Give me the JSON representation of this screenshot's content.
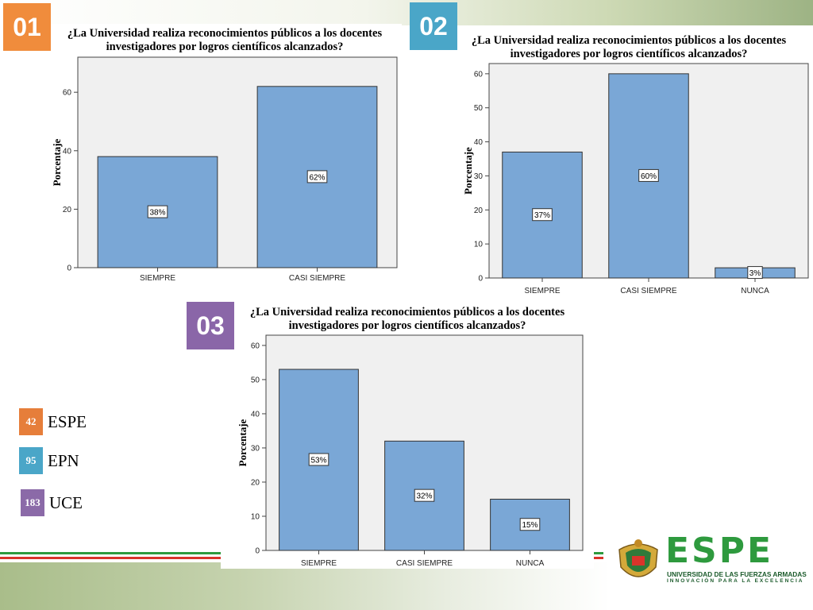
{
  "badges": [
    "01",
    "02",
    "03"
  ],
  "legend": [
    {
      "count": "42",
      "name": "ESPE",
      "color": "#e67e3a"
    },
    {
      "count": "95",
      "name": "EPN",
      "color": "#4aa6c8"
    },
    {
      "count": "183",
      "name": "UCE",
      "color": "#8b6aa8"
    }
  ],
  "colors": {
    "bar": "#7aa7d6",
    "plot_bg": "#f0f0f0",
    "badge_01": "#f08c3c",
    "badge_02": "#4aa6c8",
    "badge_03": "#8a66a8",
    "brand_green": "#2e9a3e"
  },
  "chart_data": [
    {
      "type": "bar",
      "title": "¿La Universidad realiza reconocimientos públicos a los docentes investigadores por logros científicos alcanzados?",
      "title_lines": [
        "¿La Universidad realiza reconocimientos públicos a los docentes",
        "investigadores por logros científicos alcanzados?"
      ],
      "ylabel": "Porcentaje",
      "categories": [
        "SIEMPRE",
        "CASI SIEMPRE"
      ],
      "values": [
        38,
        62
      ],
      "data_labels": [
        "38%",
        "62%"
      ],
      "ylim": [
        0,
        72
      ],
      "yticks": [
        0,
        20,
        40,
        60
      ],
      "grid": false
    },
    {
      "type": "bar",
      "title": "¿La Universidad realiza reconocimientos públicos a los docentes investigadores por logros científicos alcanzados?",
      "title_lines": [
        "¿La Universidad realiza reconocimientos públicos a los docentes",
        "investigadores por logros científicos alcanzados?"
      ],
      "ylabel": "Porcentaje",
      "categories": [
        "SIEMPRE",
        "CASI SIEMPRE",
        "NUNCA"
      ],
      "values": [
        37,
        60,
        3
      ],
      "data_labels": [
        "37%",
        "60%",
        "3%"
      ],
      "ylim": [
        0,
        63
      ],
      "yticks": [
        0,
        10,
        20,
        30,
        40,
        50,
        60
      ],
      "grid": false
    },
    {
      "type": "bar",
      "title": "¿La Universidad realiza reconocimientos públicos a los docentes investigadores por logros científicos alcanzados?",
      "title_lines": [
        "¿La Universidad realiza reconocimientos públicos a los docentes",
        "investigadores por logros científicos alcanzados?"
      ],
      "ylabel": "Porcentaje",
      "categories": [
        "SIEMPRE",
        "CASI SIEMPRE",
        "NUNCA"
      ],
      "values": [
        53,
        32,
        15
      ],
      "data_labels": [
        "53%",
        "32%",
        "15%"
      ],
      "ylim": [
        0,
        63
      ],
      "yticks": [
        0,
        10,
        20,
        30,
        40,
        50,
        60
      ],
      "grid": false
    }
  ],
  "logo": {
    "wordmark": "ESPE",
    "line1": "UNIVERSIDAD DE LAS FUERZAS ARMADAS",
    "line2": "INNOVACIÓN PARA LA EXCELENCIA"
  }
}
